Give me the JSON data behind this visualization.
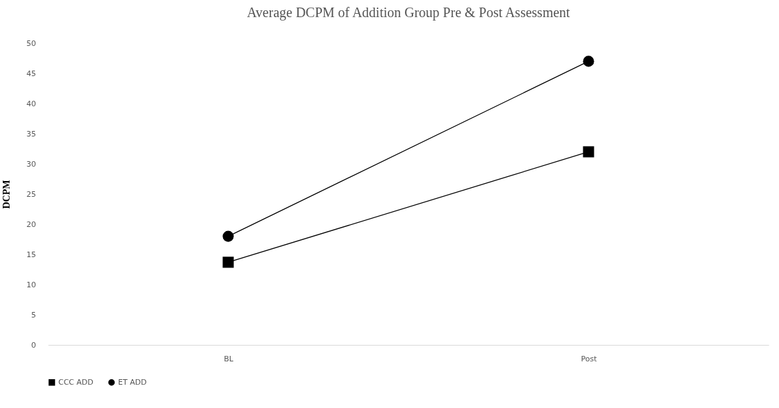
{
  "chart_data": {
    "type": "line",
    "title": "Average DCPM of Addition Group Pre & Post Assessment",
    "ylabel": "DCPM",
    "categories": [
      "BL",
      "Post"
    ],
    "series": [
      {
        "name": "CCC ADD",
        "color": "#000000",
        "values": [
          13.7,
          32
        ],
        "marker": "square"
      },
      {
        "name": "ET ADD",
        "color": "#000000",
        "values": [
          18,
          47
        ],
        "marker": "circle"
      }
    ],
    "ylim": [
      0,
      50
    ],
    "yticks": [
      0,
      5,
      10,
      15,
      20,
      25,
      30,
      35,
      40,
      45,
      50
    ],
    "grid": false,
    "legend": "bottom",
    "line_style": "solid"
  }
}
